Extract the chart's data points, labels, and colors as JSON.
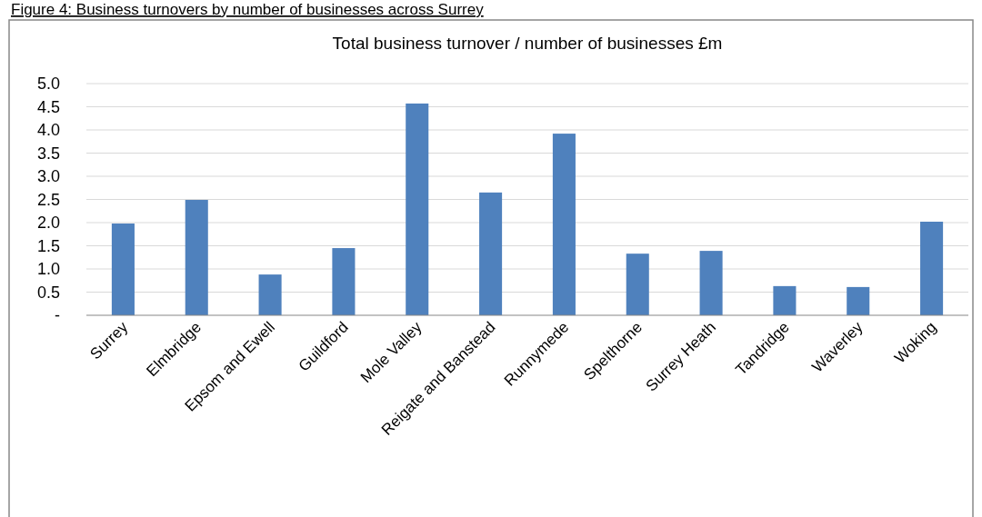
{
  "chart_data": {
    "type": "bar",
    "title": "Total business turnover / number of businesses £m",
    "annotations": [
      "Figure 4: Business turnovers by number of businesses across Surrey"
    ],
    "categories": [
      "Surrey",
      "Elmbridge",
      "Epsom and Ewell",
      "Guildford",
      "Mole Valley",
      "Reigate and Banstead",
      "Runnymede",
      "Spelthorne",
      "Surrey Heath",
      "Tandridge",
      "Waverley",
      "Woking"
    ],
    "values": [
      1.98,
      2.49,
      0.88,
      1.45,
      4.57,
      2.65,
      3.92,
      1.33,
      1.39,
      0.63,
      0.61,
      2.02
    ],
    "color": "#4f81bd",
    "ylim": [
      0,
      5
    ],
    "yticks": [
      {
        "value": 0,
        "label": "-"
      },
      0.5,
      {
        "value": 1,
        "label": "1.0"
      },
      1.5,
      {
        "value": 2,
        "label": "2.0"
      },
      2.5,
      {
        "value": 3,
        "label": "3.0"
      },
      3.5,
      {
        "value": 4,
        "label": "4.0"
      },
      4.5,
      {
        "value": 5,
        "label": "5.0"
      }
    ],
    "grid": "y"
  }
}
